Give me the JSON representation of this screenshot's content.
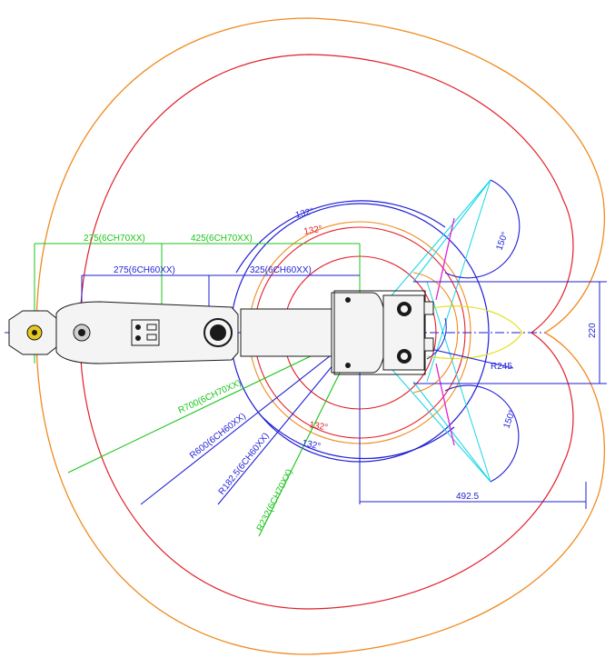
{
  "colors": {
    "orange": "#f08a1e",
    "red": "#e0202a",
    "blue": "#1f1fd6",
    "green": "#18c418",
    "cyan": "#18d6e6",
    "magenta": "#e020d8",
    "yellow": "#e6e020",
    "black": "#1a1a1a"
  },
  "dims": {
    "d275_70": "275(6CH70XX)",
    "d425_70": "425(6CH70XX)",
    "d275_60": "275(6CH60XX)",
    "d325_60": "325(6CH60XX)",
    "r700": "R700(6CH70XX)",
    "r600": "R600(6CH60XX)",
    "r182": "R182.5(6CH60XX)",
    "r232": "R232(6CH70XX)",
    "r245": "R245",
    "d220": "220",
    "d492": "492.5"
  },
  "angles": {
    "top_outer": "132°",
    "top_inner": "132°",
    "bot_inner": "132°",
    "bot_outer": "132°",
    "right_top": "150°",
    "right_bot": "150°"
  }
}
